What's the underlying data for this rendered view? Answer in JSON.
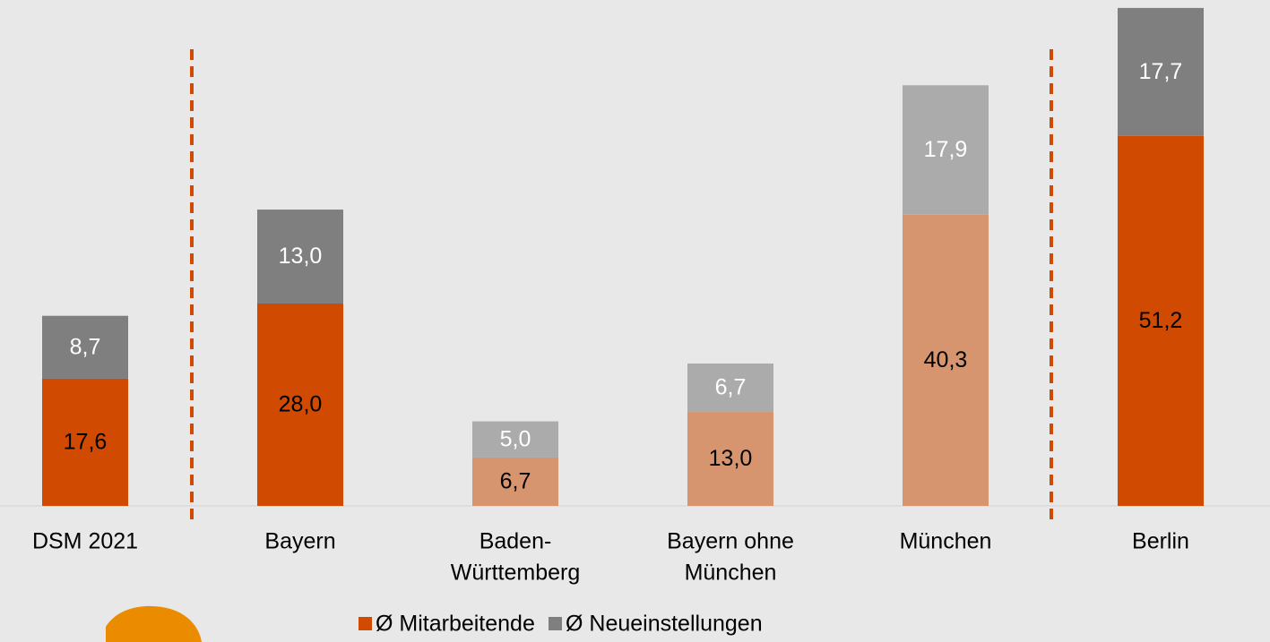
{
  "chart_data": {
    "type": "stacked-bar",
    "categories": [
      [
        "DSM 2021"
      ],
      [
        "Bayern"
      ],
      [
        "Baden-",
        "Württemberg"
      ],
      [
        "Bayern ohne",
        "München"
      ],
      [
        "München"
      ],
      [
        "Berlin"
      ]
    ],
    "series": [
      {
        "name": "Ø Mitarbeitende",
        "color": "#d04a02",
        "colors": [
          "#d04a02",
          "#d04a02",
          "#d7956f",
          "#d7956f",
          "#d7956f",
          "#d04a02"
        ],
        "values": [
          17.6,
          28.0,
          6.7,
          13.0,
          40.3,
          51.2
        ],
        "value_labels": [
          "17,6",
          "28,0",
          "6,7",
          "13,0",
          "40,3",
          "51,2"
        ]
      },
      {
        "name": "Ø Neueinstellungen",
        "color": "#7f7f7f",
        "colors": [
          "#7f7f7f",
          "#7f7f7f",
          "#ababab",
          "#ababab",
          "#ababab",
          "#7f7f7f"
        ],
        "values": [
          8.7,
          13.0,
          5.0,
          6.7,
          17.9,
          17.7
        ],
        "value_labels": [
          "8,7",
          "13,0",
          "5,0",
          "6,7",
          "17,9",
          "17,7"
        ]
      }
    ],
    "ylim": [
      0,
      70
    ]
  }
}
